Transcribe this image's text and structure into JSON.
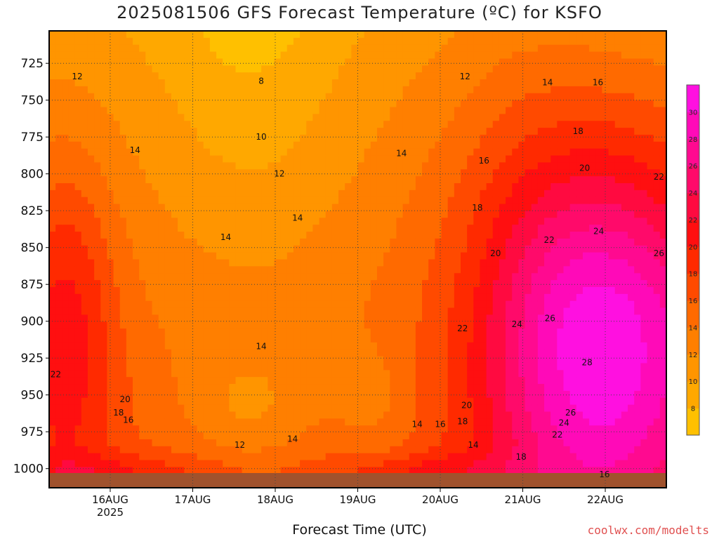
{
  "page": {
    "title": "2025081506 GFS Forecast Temperature (ºC) for KSFO",
    "credit": "coolwx.com/modelts"
  },
  "chart_data": {
    "type": "heatmap",
    "title": "2025081506 GFS Forecast Temperature (ºC) for KSFO",
    "xlabel": "Forecast Time (UTC)",
    "ylabel": "",
    "x_ticks": [
      "16AUG\n2025",
      "17AUG",
      "18AUG",
      "19AUG",
      "20AUG",
      "21AUG",
      "22AUG"
    ],
    "x_range_days": [
      -0.74,
      6.74
    ],
    "y_ticks": [
      725,
      750,
      775,
      800,
      825,
      850,
      875,
      900,
      925,
      950,
      975,
      1000
    ],
    "y_range_hpa": [
      703,
      1013
    ],
    "grid": true,
    "colorbar": {
      "levels": [
        6,
        8,
        10,
        12,
        14,
        16,
        18,
        20,
        22,
        24,
        26,
        28,
        30,
        32
      ],
      "labels": [
        8,
        10,
        12,
        14,
        16,
        18,
        20,
        22,
        24,
        26,
        28,
        30
      ],
      "colors": [
        "#ffc000",
        "#ffa800",
        "#ff9500",
        "#ff7f00",
        "#ff6a00",
        "#ff4a00",
        "#ff2a00",
        "#ff0f10",
        "#ff0a40",
        "#ff0a6a",
        "#ff0a90",
        "#ff0ab8",
        "#ff10e0"
      ]
    },
    "contour_labels": [
      {
        "text": "12",
        "day": -0.4,
        "p": 734
      },
      {
        "text": "8",
        "day": 1.83,
        "p": 737
      },
      {
        "text": "12",
        "day": 4.3,
        "p": 734
      },
      {
        "text": "14",
        "day": 5.3,
        "p": 738
      },
      {
        "text": "16",
        "day": 5.91,
        "p": 738
      },
      {
        "text": "10",
        "day": 1.83,
        "p": 775
      },
      {
        "text": "14",
        "day": 0.3,
        "p": 784
      },
      {
        "text": "14",
        "day": 3.53,
        "p": 786
      },
      {
        "text": "16",
        "day": 4.53,
        "p": 791
      },
      {
        "text": "18",
        "day": 5.67,
        "p": 771
      },
      {
        "text": "12",
        "day": 2.05,
        "p": 800
      },
      {
        "text": "20",
        "day": 5.75,
        "p": 796
      },
      {
        "text": "22",
        "day": 6.65,
        "p": 802
      },
      {
        "text": "14",
        "day": 1.4,
        "p": 843
      },
      {
        "text": "14",
        "day": 2.27,
        "p": 830
      },
      {
        "text": "18",
        "day": 4.45,
        "p": 823
      },
      {
        "text": "22",
        "day": 5.32,
        "p": 845
      },
      {
        "text": "24",
        "day": 5.92,
        "p": 839
      },
      {
        "text": "20",
        "day": 4.67,
        "p": 854
      },
      {
        "text": "26",
        "day": 6.65,
        "p": 854
      },
      {
        "text": "26",
        "day": 5.33,
        "p": 898
      },
      {
        "text": "24",
        "day": 4.93,
        "p": 902
      },
      {
        "text": "22",
        "day": 4.27,
        "p": 905
      },
      {
        "text": "14",
        "day": 1.83,
        "p": 917
      },
      {
        "text": "28",
        "day": 5.78,
        "p": 928
      },
      {
        "text": "22",
        "day": -0.66,
        "p": 936
      },
      {
        "text": "20",
        "day": 0.18,
        "p": 953
      },
      {
        "text": "18",
        "day": 0.1,
        "p": 962
      },
      {
        "text": "16",
        "day": 0.22,
        "p": 967
      },
      {
        "text": "20",
        "day": 4.32,
        "p": 957
      },
      {
        "text": "18",
        "day": 4.27,
        "p": 968
      },
      {
        "text": "16",
        "day": 4.0,
        "p": 970
      },
      {
        "text": "14",
        "day": 3.72,
        "p": 970
      },
      {
        "text": "26",
        "day": 5.58,
        "p": 962
      },
      {
        "text": "24",
        "day": 5.5,
        "p": 969
      },
      {
        "text": "22",
        "day": 5.42,
        "p": 977
      },
      {
        "text": "12",
        "day": 1.57,
        "p": 984
      },
      {
        "text": "14",
        "day": 2.21,
        "p": 980
      },
      {
        "text": "14",
        "day": 4.4,
        "p": 984
      },
      {
        "text": "18",
        "day": 4.98,
        "p": 992
      },
      {
        "text": "16",
        "day": 5.99,
        "p": 1004
      }
    ]
  }
}
